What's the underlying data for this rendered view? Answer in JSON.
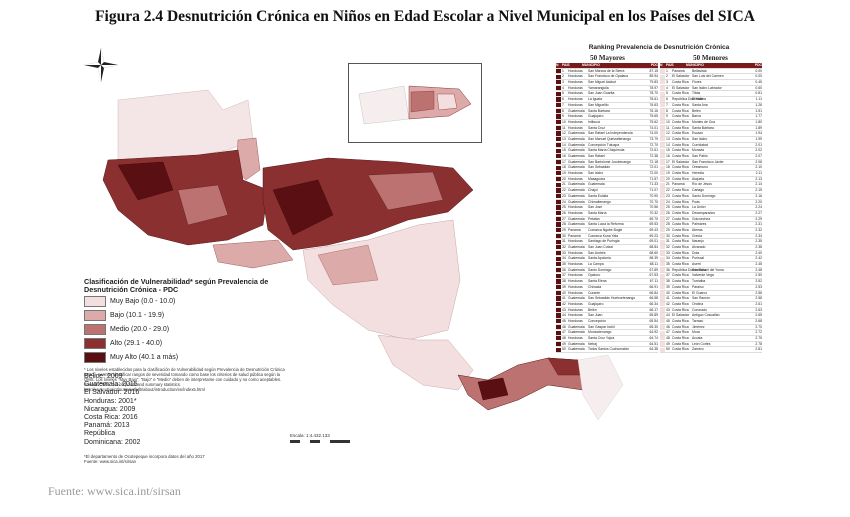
{
  "title": "Figura 2.4 Desnutrición Crónica en Niños en Edad Escolar a Nivel Municipal en los Países del SICA",
  "source": "Fuente: www.sica.int/sirsan",
  "legend": {
    "title": "Clasificación de Vulnerabilidad* según Prevalencia de Desnutrición Crónica - PDC",
    "classes": [
      {
        "label": "Muy Bajo (0.0 - 10.0)",
        "color": "#f3dfdf"
      },
      {
        "label": "Bajo (10.1 - 19.9)",
        "color": "#dcaaa8"
      },
      {
        "label": "Medio (20.0 - 29.0)",
        "color": "#bb7270"
      },
      {
        "label": "Alto (29.1 - 40.0)",
        "color": "#8b3031"
      },
      {
        "label": "Muy Alto (40.1 a más)",
        "color": "#5a0f12"
      }
    ],
    "notes": "* Los niveles establecidos para la clasificación de Vulnerabilidad según Prevalencia de Desnutrición Crónica (PDC), permite identificar rangos de severidad tomando como base los criterios de salud pública según la OMS. Los niveles \"Muy Bajo\", \"Bajo\" e \"Medio\" deben de interpretarse con cuidado y no como aceptables. Fuente: OMS. Cut-off points and summary statistics. http://www.who.int/nutgrowthdb/about/introduction/en/index5.html"
  },
  "years": [
    "Belice: 2009",
    "Guatemala: 2015",
    "El Salvador: 2016",
    "Honduras: 2001*",
    "Nicaragua: 2009",
    "Costa Rica: 2016",
    "Panamá: 2013",
    "República",
    "Dominicana: 2002"
  ],
  "bottom_note": "*El departamento de Ocotepeque incorpora datos del año 2017\nFuente: www.sica.int/sirsan",
  "scale": "Escala: 1:4.432.133",
  "ranking": {
    "title": "Ranking Prevalencia de Desnutrición Crónica",
    "left_header": "50 Mayores",
    "right_header": "50 Menores",
    "columns": [
      "N",
      "PAIS",
      "MUNICIPIO",
      "PDC"
    ],
    "mayores": [
      [
        "1",
        "Honduras",
        "San Marcos de la Sierra",
        "87.15"
      ],
      [
        "2",
        "Honduras",
        "San Francisco de Opalaca",
        "85.94"
      ],
      [
        "3",
        "Honduras",
        "San Miguel Asidué",
        "79.83"
      ],
      [
        "4",
        "Honduras",
        "Yamaranguila",
        "78.97"
      ],
      [
        "5",
        "Honduras",
        "San Juan Guarita",
        "78.70"
      ],
      [
        "6",
        "Honduras",
        "La Iguala",
        "78.61"
      ],
      [
        "7",
        "Honduras",
        "San Miguelito",
        "76.63"
      ],
      [
        "8",
        "Guatemala",
        "Santa Bárbara",
        "76.16"
      ],
      [
        "9",
        "Honduras",
        "Guajiquiro",
        "75.65"
      ],
      [
        "10",
        "Honduras",
        "Intibucá",
        "75.62"
      ],
      [
        "11",
        "Honduras",
        "Santa Cruz",
        "74.01"
      ],
      [
        "12",
        "Guatemala",
        "San Rafael La Independencia",
        "74.00"
      ],
      [
        "13",
        "Guatemala",
        "San Manuel Quetzaltenango",
        "73.79"
      ],
      [
        "14",
        "Guatemala",
        "Concepción Tutuapa",
        "72.70"
      ],
      [
        "15",
        "Guatemala",
        "Santa María Chiquimula",
        "72.61"
      ],
      [
        "16",
        "Guatemala",
        "San Rafael",
        "72.38"
      ],
      [
        "17",
        "Guatemala",
        "San Bartolomé Jocotenango",
        "72.18"
      ],
      [
        "18",
        "Guatemala",
        "San Sebastián",
        "72.01"
      ],
      [
        "19",
        "Honduras",
        "San Isidro",
        "72.00"
      ],
      [
        "20",
        "Honduras",
        "Masaguara",
        "71.57"
      ],
      [
        "21",
        "Guatemala",
        "Guatemala",
        "71.33"
      ],
      [
        "22",
        "Guatemala",
        "Chajul",
        "71.07"
      ],
      [
        "23",
        "Guatemala",
        "Santa Eulalia",
        "70.90"
      ],
      [
        "24",
        "Guatemala",
        "Chimaltenango",
        "70.70"
      ],
      [
        "25",
        "Honduras",
        "San José",
        "70.56"
      ],
      [
        "26",
        "Honduras",
        "Santa María",
        "70.32"
      ],
      [
        "27",
        "Guatemala",
        "Petatán",
        "69.70"
      ],
      [
        "28",
        "Guatemala",
        "Santa Lucía la Reforma",
        "69.53"
      ],
      [
        "29",
        "Panamá",
        "Comarca Ngobe Bugle",
        "69.43"
      ],
      [
        "30",
        "Panamá",
        "Comarca Kuna Yala",
        "69.23"
      ],
      [
        "31",
        "Honduras",
        "Santiago de Puringla",
        "69.01"
      ],
      [
        "32",
        "Guatemala",
        "San Juan Cotzal",
        "68.84"
      ],
      [
        "33",
        "Honduras",
        "San Andrés",
        "68.60"
      ],
      [
        "34",
        "Guatemala",
        "Santa Apolonia",
        "68.39"
      ],
      [
        "35",
        "Honduras",
        "La Campa",
        "68.11"
      ],
      [
        "36",
        "Guatemala",
        "Santo Domingo",
        "67.89"
      ],
      [
        "37",
        "Honduras",
        "Opatoro",
        "67.53"
      ],
      [
        "38",
        "Honduras",
        "Santa Elena",
        "67.11"
      ],
      [
        "39",
        "Honduras",
        "Chinacla",
        "66.91"
      ],
      [
        "40",
        "Honduras",
        "Curarén",
        "66.84"
      ],
      [
        "41",
        "Guatemala",
        "San Sebastián Huehuetenango",
        "66.58"
      ],
      [
        "42",
        "Honduras",
        "Guajiquiro",
        "66.34"
      ],
      [
        "43",
        "Honduras",
        "Belén",
        "66.17"
      ],
      [
        "44",
        "Honduras",
        "San Juan",
        "65.89"
      ],
      [
        "45",
        "Honduras",
        "Concepción",
        "65.54"
      ],
      [
        "46",
        "Guatemala",
        "San Gaspar Ixchil",
        "65.30"
      ],
      [
        "47",
        "Guatemala",
        "Momostenango",
        "64.92"
      ],
      [
        "48",
        "Honduras",
        "Santa Cruz Yojoa",
        "64.74"
      ],
      [
        "49",
        "Guatemala",
        "Nebaj",
        "64.51"
      ],
      [
        "50",
        "Guatemala",
        "Todos Santos Cuchumatán",
        "64.38"
      ]
    ],
    "menores": [
      [
        "1",
        "Panamá",
        "Bellavista",
        "0.00"
      ],
      [
        "2",
        "El Salvador",
        "San Luis del Carmen",
        "0.00"
      ],
      [
        "3",
        "Costa Rica",
        "Flores",
        "0.45"
      ],
      [
        "4",
        "El Salvador",
        "San Isidro Labrador",
        "0.60"
      ],
      [
        "5",
        "Costa Rica",
        "Tibás",
        "0.81"
      ],
      [
        "6",
        "República Dominicana",
        "El Valle",
        "1.11"
      ],
      [
        "7",
        "Costa Rica",
        "Santa Ana",
        "1.26"
      ],
      [
        "8",
        "Costa Rica",
        "Belén",
        "1.51"
      ],
      [
        "9",
        "Costa Rica",
        "Barva",
        "1.77"
      ],
      [
        "10",
        "Costa Rica",
        "Montes de Oca",
        "1.80"
      ],
      [
        "11",
        "Costa Rica",
        "Santa Bárbara",
        "1.89"
      ],
      [
        "12",
        "Costa Rica",
        "Escazú",
        "1.94"
      ],
      [
        "13",
        "Costa Rica",
        "San Isidro",
        "1.99"
      ],
      [
        "14",
        "Costa Rica",
        "Curridabat",
        "2.01"
      ],
      [
        "15",
        "Costa Rica",
        "Moravia",
        "2.02"
      ],
      [
        "16",
        "Costa Rica",
        "San Pablo",
        "2.07"
      ],
      [
        "17",
        "El Salvador",
        "San Francisco Javier",
        "2.08"
      ],
      [
        "18",
        "Costa Rica",
        "Oreamuno",
        "2.10"
      ],
      [
        "19",
        "Costa Rica",
        "Heredia",
        "2.11"
      ],
      [
        "20",
        "Costa Rica",
        "Alajuela",
        "2.13"
      ],
      [
        "21",
        "Panamá",
        "Río de Jesús",
        "2.14"
      ],
      [
        "22",
        "Costa Rica",
        "Cartago",
        "2.15"
      ],
      [
        "23",
        "Costa Rica",
        "Santo Domingo",
        "2.16"
      ],
      [
        "24",
        "Costa Rica",
        "Poás",
        "2.20"
      ],
      [
        "25",
        "Costa Rica",
        "La Unión",
        "2.24"
      ],
      [
        "26",
        "Costa Rica",
        "Desamparados",
        "2.27"
      ],
      [
        "27",
        "Costa Rica",
        "Goicoechea",
        "2.29"
      ],
      [
        "28",
        "Costa Rica",
        "Palmares",
        "2.31"
      ],
      [
        "29",
        "Costa Rica",
        "Atenas",
        "2.32"
      ],
      [
        "30",
        "Costa Rica",
        "Grecia",
        "2.34"
      ],
      [
        "31",
        "Costa Rica",
        "Naranjo",
        "2.35"
      ],
      [
        "32",
        "Costa Rica",
        "Alvarado",
        "2.38"
      ],
      [
        "33",
        "Costa Rica",
        "Dota",
        "2.40"
      ],
      [
        "34",
        "Costa Rica",
        "Puriscal",
        "2.42"
      ],
      [
        "35",
        "Costa Rica",
        "Aserrí",
        "2.45"
      ],
      [
        "36",
        "República Dominicana",
        "San Rafael del Yuma",
        "2.48"
      ],
      [
        "37",
        "Costa Rica",
        "Valverde Vega",
        "2.50"
      ],
      [
        "38",
        "Costa Rica",
        "Turrialba",
        "2.52"
      ],
      [
        "39",
        "Costa Rica",
        "Paraíso",
        "2.53"
      ],
      [
        "40",
        "Costa Rica",
        "El Guarco",
        "2.56"
      ],
      [
        "41",
        "Costa Rica",
        "San Ramón",
        "2.58"
      ],
      [
        "42",
        "Costa Rica",
        "Orotina",
        "2.61"
      ],
      [
        "43",
        "Costa Rica",
        "Coronado",
        "2.63"
      ],
      [
        "44",
        "El Salvador",
        "Antiguo Cuscatlán",
        "2.65"
      ],
      [
        "45",
        "Costa Rica",
        "Tarrazú",
        "2.68"
      ],
      [
        "46",
        "Costa Rica",
        "Jiménez",
        "2.70"
      ],
      [
        "47",
        "Costa Rica",
        "Mora",
        "2.72"
      ],
      [
        "48",
        "Costa Rica",
        "Acosta",
        "2.75"
      ],
      [
        "49",
        "Costa Rica",
        "León Cortés",
        "2.78"
      ],
      [
        "50",
        "Costa Rica",
        "Zarcero",
        "2.81"
      ]
    ]
  }
}
